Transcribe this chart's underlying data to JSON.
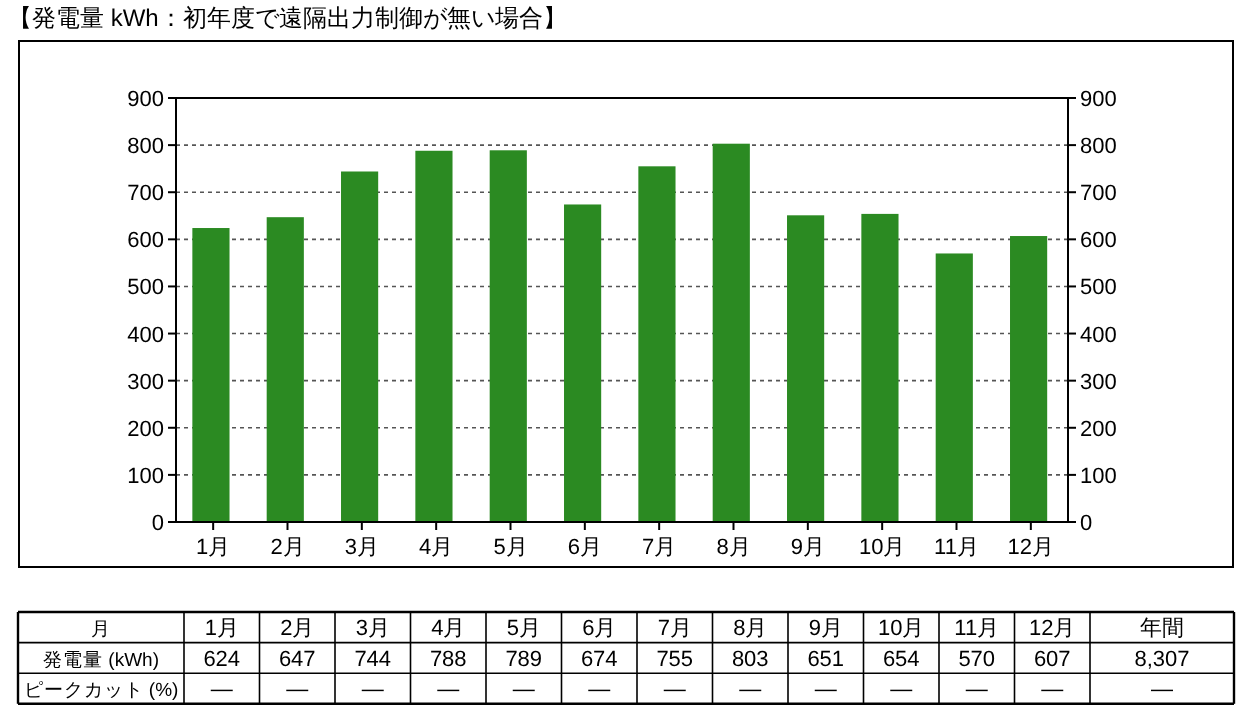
{
  "chart_data": {
    "type": "bar",
    "title": "【発電量 kWh：初年度で遠隔出力制御が無い場合】",
    "categories": [
      "1月",
      "2月",
      "3月",
      "4月",
      "5月",
      "6月",
      "7月",
      "8月",
      "9月",
      "10月",
      "11月",
      "12月"
    ],
    "series": [
      {
        "color": "#2b8a22",
        "values": [
          624,
          647,
          744,
          788,
          789,
          674,
          755,
          803,
          651,
          654,
          570,
          607
        ]
      }
    ],
    "ylim": [
      0,
      900
    ],
    "yticks": [
      0,
      100,
      200,
      300,
      400,
      500,
      600,
      700,
      800,
      900
    ],
    "y2lim": [
      0,
      900
    ],
    "y2ticks": [
      0,
      100,
      200,
      300,
      400,
      500,
      600,
      700,
      800,
      900
    ],
    "grid": "y",
    "data_labels": true,
    "annotations": [
      "月",
      "発電量 (kWh)",
      "ピークカット (%)",
      "年間",
      "8,307",
      "—",
      "—",
      "—",
      "—",
      "—",
      "—",
      "—",
      "—",
      "—",
      "—",
      "—",
      "—",
      "—"
    ]
  }
}
